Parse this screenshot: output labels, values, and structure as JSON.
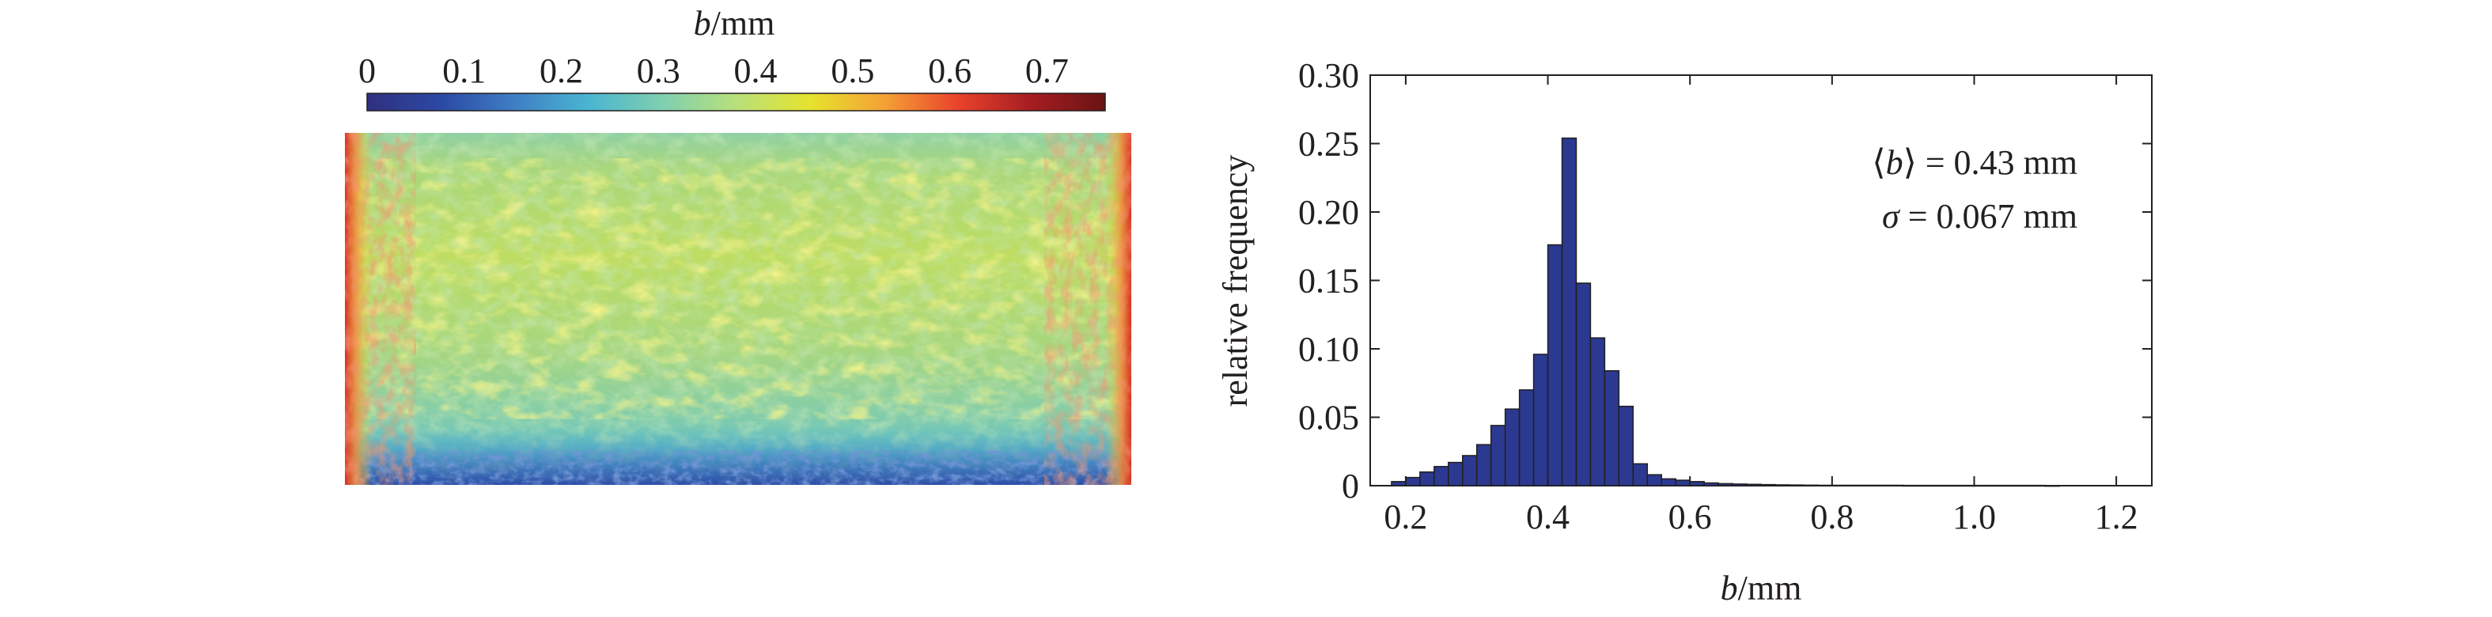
{
  "colormap_panel": {
    "colorbar": {
      "title_italic": "b",
      "title_unit": "/mm",
      "tick_labels": [
        "0",
        "0.1",
        "0.2",
        "0.3",
        "0.4",
        "0.5",
        "0.6",
        "0.7"
      ],
      "tick_values": [
        0,
        0.1,
        0.2,
        0.3,
        0.4,
        0.5,
        0.6,
        0.7
      ],
      "range": [
        0,
        0.76
      ],
      "colormap": "jet",
      "colors": [
        "#30307e",
        "#2b49a4",
        "#3f7fc4",
        "#4ab5d1",
        "#7fcfb0",
        "#b8e07a",
        "#e6e32e",
        "#f4a235",
        "#e9432c",
        "#a51d22",
        "#6a1313"
      ]
    },
    "map": {
      "description_colors": {
        "bulk": "#b4d86a",
        "bands": "#86cfaa",
        "bottom_low": "#2c4fa6",
        "edges_high": "#e2412d"
      }
    }
  },
  "chart_data": {
    "type": "bar",
    "bin_width": 0.02,
    "bin_starts": [
      0.18,
      0.2,
      0.22,
      0.24,
      0.26,
      0.28,
      0.3,
      0.32,
      0.34,
      0.36,
      0.38,
      0.4,
      0.42,
      0.44,
      0.46,
      0.48,
      0.5,
      0.52,
      0.54,
      0.56,
      0.58,
      0.6,
      0.62,
      0.64,
      0.66,
      0.68,
      0.7,
      0.72,
      0.74,
      0.76,
      0.78,
      0.8,
      0.9,
      1.0,
      1.1
    ],
    "values": [
      0.003,
      0.006,
      0.01,
      0.014,
      0.017,
      0.022,
      0.03,
      0.044,
      0.056,
      0.07,
      0.096,
      0.176,
      0.254,
      0.148,
      0.108,
      0.084,
      0.058,
      0.016,
      0.008,
      0.005,
      0.004,
      0.003,
      0.002,
      0.0015,
      0.0012,
      0.001,
      0.0008,
      0.0006,
      0.0005,
      0.0004,
      0.0003,
      0.0003,
      0.0002,
      0.0002,
      0.0001
    ],
    "xlabel_italic": "b",
    "xlabel_unit": "/mm",
    "ylabel": "relative frequency",
    "xlim": [
      0.15,
      1.25
    ],
    "ylim": [
      0,
      0.3
    ],
    "xticks": [
      0.2,
      0.4,
      0.6,
      0.8,
      1.0,
      1.2
    ],
    "xtick_labels": [
      "0.2",
      "0.4",
      "0.6",
      "0.8",
      "1.0",
      "1.2"
    ],
    "yticks": [
      0,
      0.05,
      0.1,
      0.15,
      0.2,
      0.25,
      0.3
    ],
    "ytick_labels": [
      "0",
      "0.05",
      "0.10",
      "0.15",
      "0.20",
      "0.25",
      "0.30"
    ],
    "bar_color": "#2b3990",
    "annotations": [
      {
        "pre": "⟨",
        "italic": "b",
        "post": "⟩ = 0.43 mm"
      },
      {
        "pre": "",
        "italic": "σ",
        "post": " = 0.067 mm"
      }
    ],
    "grid": false
  }
}
